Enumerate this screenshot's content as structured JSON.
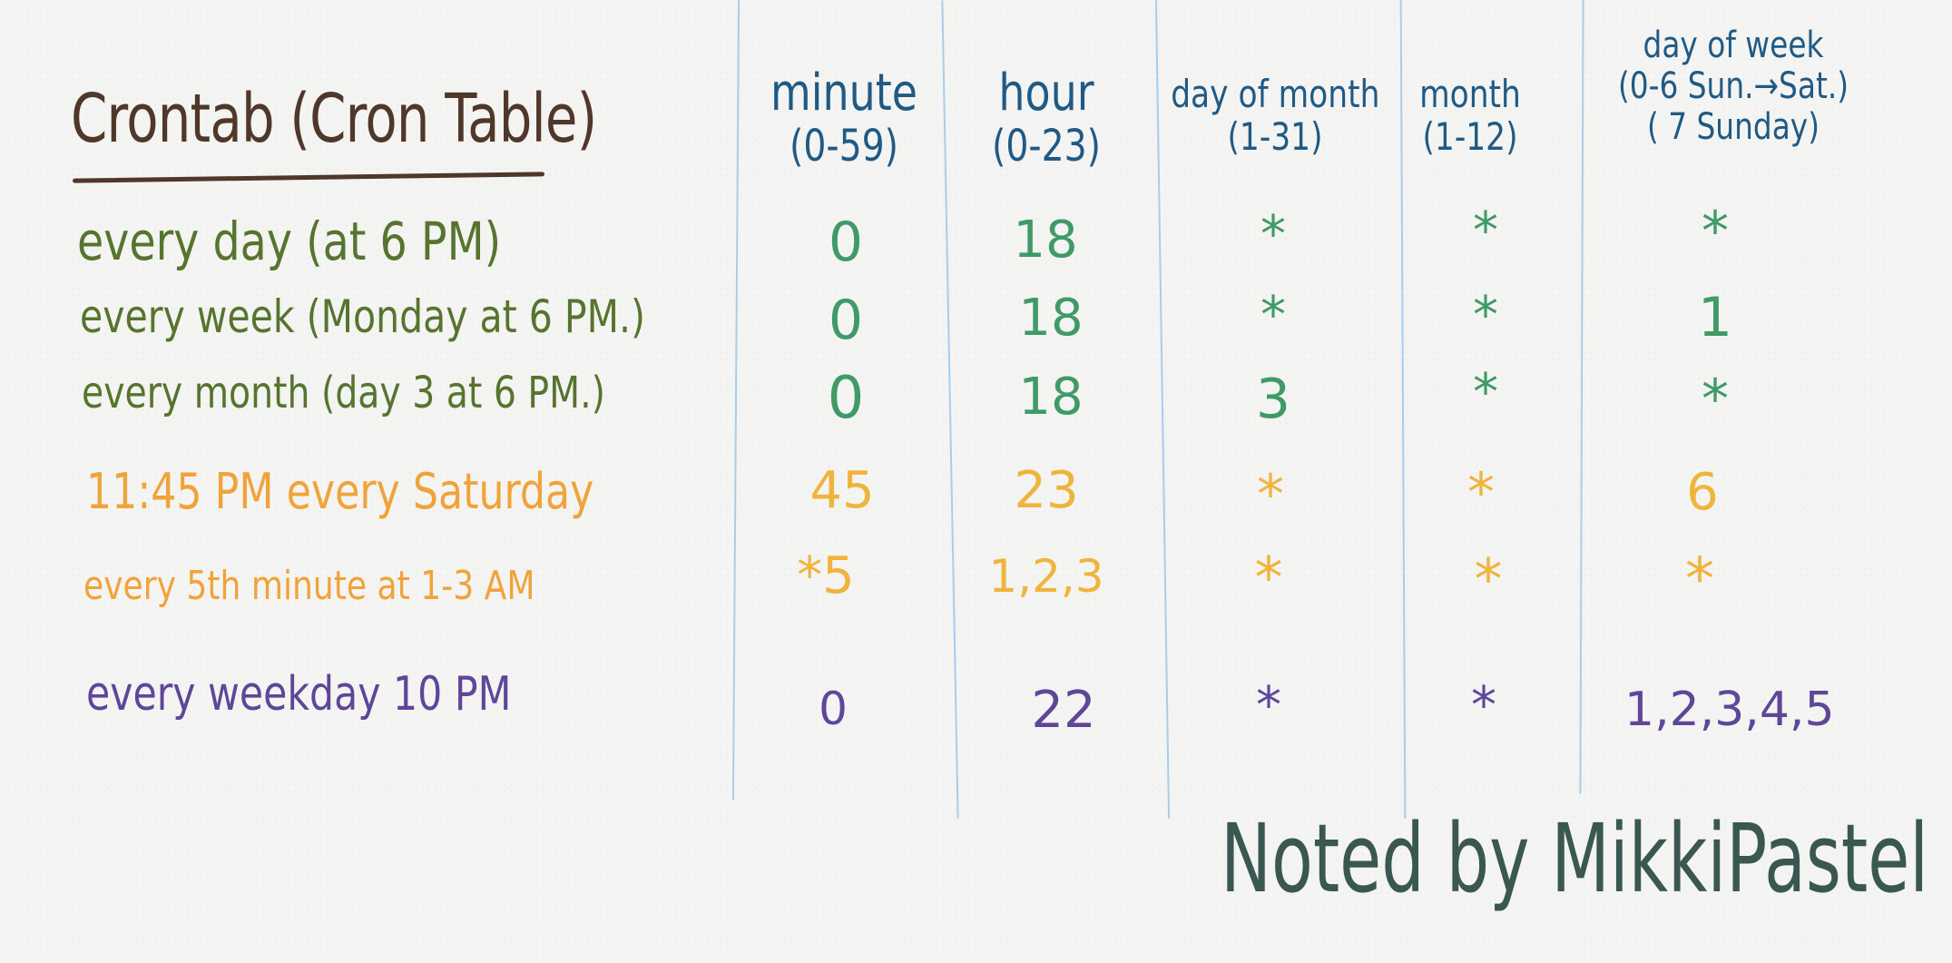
{
  "title": "Crontab (Cron Table)",
  "columns": [
    {
      "name": "minute",
      "range": "(0-59)"
    },
    {
      "name": "hour",
      "range": "(0-23)"
    },
    {
      "name": "day of month",
      "range": "(1-31)"
    },
    {
      "name": "month",
      "range": "(1-12)"
    },
    {
      "name": "day of week",
      "range": "(0-6 Sun.→Sat.)",
      "note": "( 7 Sunday)"
    }
  ],
  "rows": [
    {
      "label": "every day (at 6 PM)",
      "color": "#56742e",
      "values": [
        "0",
        "18",
        "*",
        "*",
        "*"
      ],
      "value_color": "#3f9a67"
    },
    {
      "label": "every week (Monday at 6 PM.)",
      "color": "#56742e",
      "values": [
        "0",
        "18",
        "*",
        "*",
        "1"
      ],
      "value_color": "#3f9a67"
    },
    {
      "label": "every month (day 3 at 6 PM.)",
      "color": "#56742e",
      "values": [
        "0",
        "18",
        "3",
        "*",
        "*"
      ],
      "value_color": "#3f9a67"
    },
    {
      "label": "11:45 PM every Saturday",
      "color": "#f0a33a",
      "values": [
        "45",
        "23",
        "*",
        "*",
        "6"
      ],
      "value_color": "#f0b43c"
    },
    {
      "label": "every 5th minute at 1-3 AM",
      "color": "#f0a33a",
      "values": [
        "*5",
        "1,2,3",
        "*",
        "*",
        "*"
      ],
      "value_color": "#f0b43c"
    },
    {
      "label": "every weekday 10 PM",
      "color": "#5e4699",
      "values": [
        "0",
        "22",
        "*",
        "*",
        "1,2,3,4,5"
      ],
      "value_color": "#5e4699"
    }
  ],
  "signature": "Noted by MikkiPastel"
}
